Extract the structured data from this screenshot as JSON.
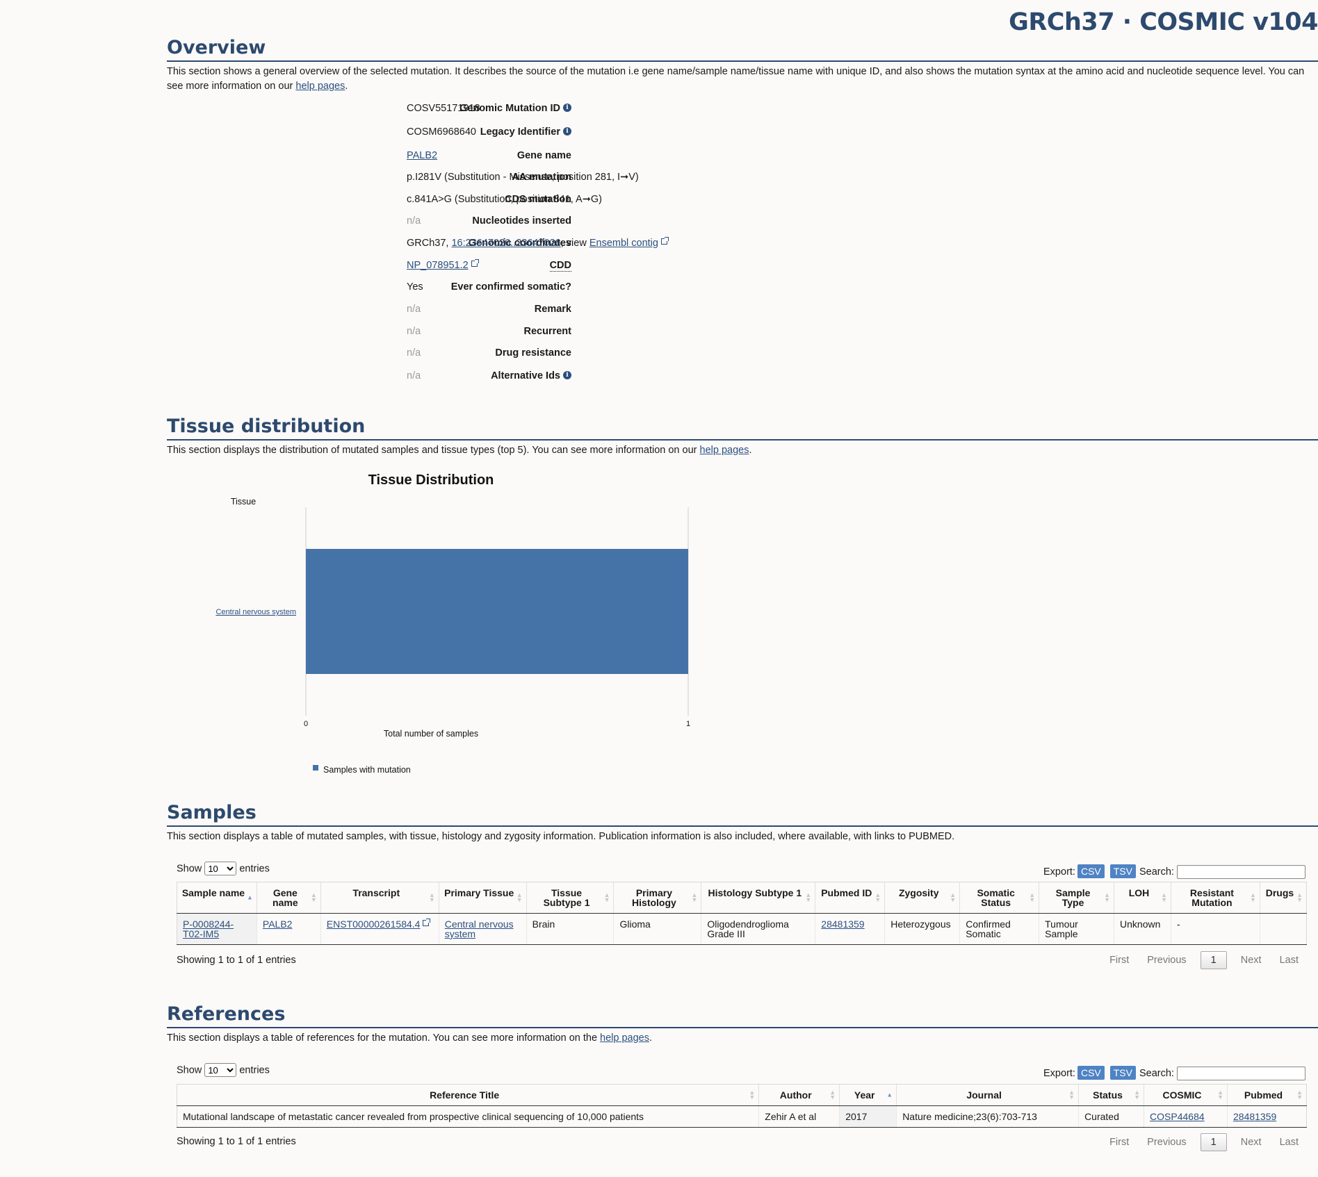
{
  "header": {
    "assembly": "GRCh37 · COSMIC v104"
  },
  "overview": {
    "title": "Overview",
    "desc_pre": "This section shows a general overview of the selected mutation. It describes the source of the mutation i.e gene name/sample name/tissue name with unique ID, and also shows the mutation syntax at the amino acid and nucleotide sequence level. You can see more information on our ",
    "desc_link": "help pages",
    "desc_post": ".",
    "rows": {
      "genomic_mutation_id": {
        "label": "Genomic Mutation ID",
        "value": "COSV55171918"
      },
      "legacy_identifier": {
        "label": "Legacy Identifier",
        "value": "COSM6968640"
      },
      "gene_name": {
        "label": "Gene name",
        "value": "PALB2"
      },
      "aa_mutation": {
        "label": "AA mutation",
        "value": "p.I281V (Substitution - Missense, position 281, I➞V)"
      },
      "cds_mutation": {
        "label": "CDS mutation",
        "value": "c.841A>G (Substitution, position 841, A➞G)"
      },
      "nucleotides_inserted": {
        "label": "Nucleotides inserted",
        "value": "n/a"
      },
      "genomic_coordinates": {
        "label": "Genomic coordinates",
        "prefix": "GRCh37, ",
        "coord_link": "16:23647026..23647026",
        "mid": ", view ",
        "ensembl_link": "Ensembl contig"
      },
      "cdd": {
        "label": "CDD",
        "value": "NP_078951.2"
      },
      "ever_confirmed_somatic": {
        "label": "Ever confirmed somatic?",
        "value": "Yes"
      },
      "remark": {
        "label": "Remark",
        "value": "n/a"
      },
      "recurrent": {
        "label": "Recurrent",
        "value": "n/a"
      },
      "drug_resistance": {
        "label": "Drug resistance",
        "value": "n/a"
      },
      "alternative_ids": {
        "label": "Alternative Ids",
        "value": "n/a"
      }
    }
  },
  "tissue": {
    "title": "Tissue distribution",
    "desc_pre": "This section displays the distribution of mutated samples and tissue types (top 5). You can see more information on our ",
    "desc_link": "help pages",
    "desc_post": "."
  },
  "chart_data": {
    "type": "bar",
    "orientation": "horizontal",
    "title": "Tissue Distribution",
    "ylabel": "Tissue",
    "xlabel": "Total number of samples",
    "categories": [
      "Central nervous system"
    ],
    "series": [
      {
        "name": "Samples with mutation",
        "values": [
          1
        ],
        "color": "#4572a7"
      }
    ],
    "xlim": [
      0,
      1
    ],
    "x_ticks": [
      "0",
      "1"
    ],
    "legend": "bottom-left",
    "grid": false
  },
  "samples": {
    "title": "Samples",
    "desc": "This section displays a table of mutated samples, with tissue, histology and zygosity information. Publication information is also included, where available, with links to PUBMED.",
    "show_label": "Show",
    "entries_label": "entries",
    "page_size": "10",
    "export_label": "Export:",
    "csv": "CSV",
    "tsv": "TSV",
    "search_label": "Search:",
    "columns": [
      "Sample name",
      "Gene name",
      "Transcript",
      "Primary Tissue",
      "Tissue Subtype 1",
      "Primary Histology",
      "Histology Subtype 1",
      "Pubmed ID",
      "Zygosity",
      "Somatic Status",
      "Sample Type",
      "LOH",
      "Resistant Mutation",
      "Drugs"
    ],
    "row": {
      "sample_name": "P-0008244-T02-IM5",
      "gene_name": "PALB2",
      "transcript": "ENST00000261584.4",
      "primary_tissue": "Central nervous system",
      "tissue_subtype": "Brain",
      "primary_histology": "Glioma",
      "histology_subtype": "Oligodendroglioma Grade III",
      "pubmed_id": "28481359",
      "zygosity": "Heterozygous",
      "somatic_status": "Confirmed Somatic",
      "sample_type": "Tumour Sample",
      "loh": "Unknown",
      "resistant_mutation": "-",
      "drugs": ""
    },
    "info": "Showing 1 to 1 of 1 entries",
    "pager": {
      "first": "First",
      "previous": "Previous",
      "current": "1",
      "next": "Next",
      "last": "Last"
    }
  },
  "references": {
    "title": "References",
    "desc_pre": "This section displays a table of references for the mutation. You can see more information on the ",
    "desc_link": "help pages",
    "desc_post": ".",
    "show_label": "Show",
    "entries_label": "entries",
    "page_size": "10",
    "export_label": "Export:",
    "csv": "CSV",
    "tsv": "TSV",
    "search_label": "Search:",
    "columns": [
      "Reference Title",
      "Author",
      "Year",
      "Journal",
      "Status",
      "COSMIC",
      "Pubmed"
    ],
    "row": {
      "title": "Mutational landscape of metastatic cancer revealed from prospective clinical sequencing of 10,000 patients",
      "author": "Zehir A et al",
      "year": "2017",
      "journal": "Nature medicine;23(6):703-713",
      "status": "Curated",
      "cosmic": "COSP44684",
      "pubmed": "28481359"
    },
    "info": "Showing 1 to 1 of 1 entries",
    "pager": {
      "first": "First",
      "previous": "Previous",
      "current": "1",
      "next": "Next",
      "last": "Last"
    }
  }
}
